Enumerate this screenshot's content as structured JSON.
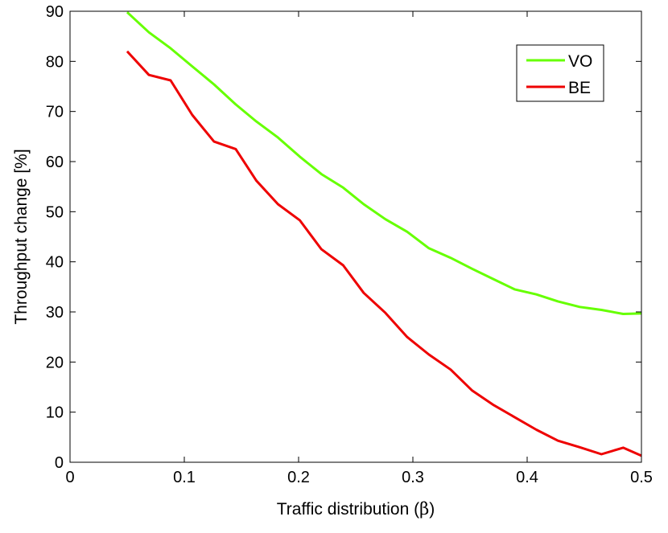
{
  "chart_data": {
    "type": "line",
    "title": "",
    "xlabel_prefix": "Traffic distribution (",
    "xlabel_symbol": "β",
    "xlabel_suffix": ")",
    "ylabel": "Throughput change [%]",
    "xlim": [
      0,
      0.5
    ],
    "ylim": [
      0,
      90
    ],
    "xticks": [
      0,
      0.1,
      0.2,
      0.3,
      0.4,
      0.5
    ],
    "xtick_labels": [
      "0",
      "0.1",
      "0.2",
      "0.3",
      "0.4",
      "0.5"
    ],
    "yticks": [
      0,
      10,
      20,
      30,
      40,
      50,
      60,
      70,
      80,
      90
    ],
    "ytick_labels": [
      "0",
      "10",
      "20",
      "30",
      "40",
      "50",
      "60",
      "70",
      "80",
      "90"
    ],
    "grid": false,
    "legend_position": "top-right",
    "x": [
      0.05,
      0.069,
      0.088,
      0.107,
      0.126,
      0.145,
      0.163,
      0.182,
      0.201,
      0.22,
      0.239,
      0.257,
      0.276,
      0.295,
      0.314,
      0.333,
      0.352,
      0.37,
      0.389,
      0.408,
      0.427,
      0.446,
      0.465,
      0.484,
      0.5
    ],
    "series": [
      {
        "name": "VO",
        "color": "#66ff00",
        "values": [
          89.8,
          85.8,
          82.6,
          79.0,
          75.4,
          71.4,
          68.0,
          64.8,
          61.0,
          57.5,
          54.8,
          51.5,
          48.5,
          46.0,
          42.7,
          40.8,
          38.6,
          36.6,
          34.5,
          33.5,
          32.1,
          31.0,
          30.4,
          29.6,
          29.7
        ]
      },
      {
        "name": "BE",
        "color": "#ee0000",
        "values": [
          82.0,
          77.3,
          76.2,
          69.3,
          64.0,
          62.5,
          56.2,
          51.5,
          48.3,
          42.5,
          39.3,
          33.8,
          29.8,
          25.0,
          21.5,
          18.5,
          14.3,
          11.5,
          9.0,
          6.5,
          4.3,
          3.0,
          1.6,
          2.9,
          1.3
        ]
      }
    ]
  }
}
